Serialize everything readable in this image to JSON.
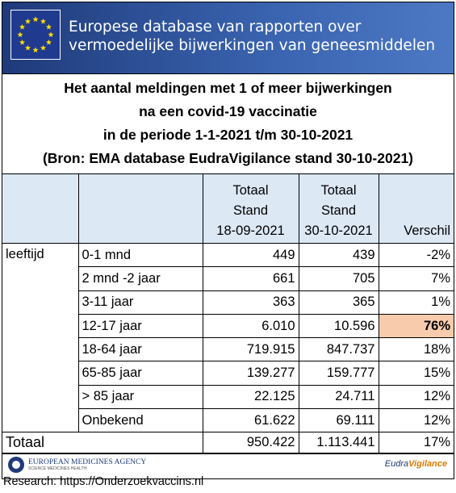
{
  "banner": {
    "lines": [
      "Europese database van rapporten over",
      "vermoedelijke bijwerkingen van geneesmiddelen"
    ]
  },
  "title": {
    "lines": [
      "Het aantal meldingen met 1 of meer  bijwerkingen",
      "na een covid-19 vaccinatie",
      "in de periode 1-1-2021 t/m 30-10-2021",
      "(Bron: EMA database EudraVigilance stand 30-10-2021)"
    ]
  },
  "table": {
    "header": [
      [
        "Totaal",
        "Stand",
        "18-09-2021"
      ],
      [
        "Totaal",
        "Stand",
        "30-10-2021"
      ],
      [
        "Verschil"
      ]
    ],
    "group": "leeftijd",
    "rows": [
      [
        "0-1 mnd",
        "449",
        "439",
        "-2%"
      ],
      [
        "2 mnd -2 jaar",
        "661",
        "705",
        "7%"
      ],
      [
        "3-11 jaar",
        "363",
        "365",
        "1%"
      ],
      [
        "12-17 jaar",
        "6.010",
        "10.596",
        "76%"
      ],
      [
        "18-64 jaar",
        "719.915",
        "847.737",
        "18%"
      ],
      [
        "65-85 jaar",
        "139.277",
        "159.777",
        "15%"
      ],
      [
        "> 85 jaar",
        "22.125",
        "24.711",
        "12%"
      ],
      [
        "Onbekend",
        "61.622",
        "69.111",
        "12%"
      ]
    ],
    "total": [
      "Totaal",
      "950.422",
      "1.113.441",
      "17%"
    ]
  },
  "footer": {
    "ema": [
      "EUROPEAN MEDICINES AGENCY",
      "SCIENCE MEDICINES HEALTH"
    ],
    "eudra": [
      "Eudra",
      "Vigilance"
    ]
  },
  "research": "Research: https://Onderzoekvaccins.nl"
}
